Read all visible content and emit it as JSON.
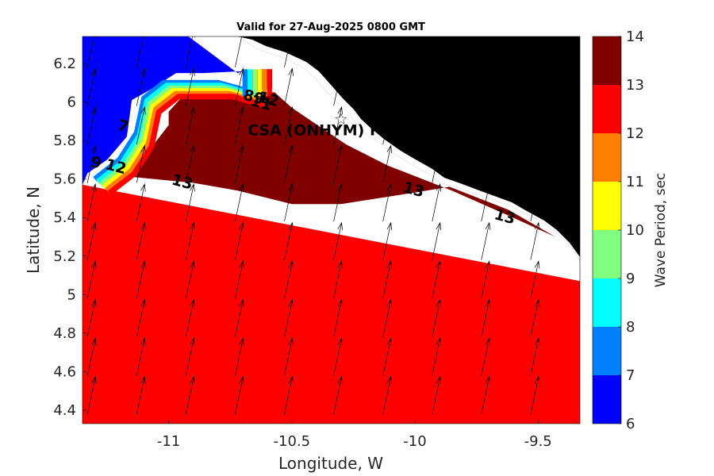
{
  "chart_data": {
    "type": "contour-map",
    "title": "Valid for 27-Aug-2025 0800 GMT",
    "xlabel": "Longitude, W",
    "ylabel": "Latitude, N",
    "xlim": [
      -11.35,
      -9.33
    ],
    "ylim": [
      4.33,
      6.34
    ],
    "x_ticks": [
      -11,
      -10.5,
      -10,
      -9.5
    ],
    "x_tick_labels": [
      "-11",
      "-10.5",
      "-10",
      "-9.5"
    ],
    "y_ticks": [
      4.4,
      4.6,
      4.8,
      5.0,
      5.2,
      5.4,
      5.6,
      5.8,
      6.0,
      6.2
    ],
    "y_tick_labels": [
      "4.4",
      "4.6",
      "4.8",
      "5",
      "5.2",
      "5.4",
      "5.6",
      "5.8",
      "6",
      "6.2"
    ],
    "colorbar": {
      "label": "Wave Period, sec",
      "ticks": [
        "6",
        "7",
        "8",
        "9",
        "10",
        "11",
        "12",
        "13",
        "14"
      ],
      "levels": [
        6,
        7,
        8,
        9,
        10,
        11,
        12,
        13,
        14
      ],
      "colors": [
        "#0000ff",
        "#0080ff",
        "#00ffff",
        "#80ff80",
        "#ffff00",
        "#ff8000",
        "#ff0000",
        "#800000"
      ]
    },
    "regions": [
      {
        "range": [
          12,
          13
        ],
        "color": "#ff0000",
        "boundary": [
          [
            -11.35,
            4.33
          ],
          [
            -9.33,
            4.33
          ],
          [
            -9.33,
            5.07
          ],
          [
            -11.35,
            5.57
          ]
        ]
      },
      {
        "range": [
          13,
          14
        ],
        "color": "#800000",
        "boundary": [
          [
            -11.14,
            5.65
          ],
          [
            -11.14,
            5.61
          ],
          [
            -10.9,
            5.58
          ],
          [
            -10.72,
            5.54
          ],
          [
            -10.5,
            5.47
          ],
          [
            -10.3,
            5.47
          ],
          [
            -10.0,
            5.53
          ],
          [
            -9.86,
            5.56
          ],
          [
            -9.62,
            5.44
          ],
          [
            -9.43,
            5.3
          ],
          [
            -9.62,
            5.41
          ],
          [
            -9.85,
            5.54
          ],
          [
            -10.11,
            5.67
          ],
          [
            -10.28,
            5.78
          ],
          [
            -10.5,
            5.97
          ],
          [
            -10.57,
            6.05
          ],
          [
            -10.7,
            6.05
          ],
          [
            -10.7,
            6.16
          ],
          [
            -10.63,
            6.17
          ],
          [
            -10.58,
            6.17
          ],
          [
            -10.58,
            6.07
          ],
          [
            -10.85,
            6.02
          ],
          [
            -10.95,
            6.02
          ],
          [
            -11.0,
            5.95
          ],
          [
            -11.0,
            5.88
          ]
        ]
      },
      {
        "range": [
          6,
          7
        ],
        "color": "#0000ff",
        "boundary": [
          [
            -11.35,
            5.57
          ],
          [
            -11.35,
            6.34
          ],
          [
            -10.92,
            6.34
          ],
          [
            -10.72,
            6.15
          ],
          [
            -10.7,
            6.16
          ],
          [
            -10.86,
            6.15
          ],
          [
            -10.97,
            6.15
          ],
          [
            -11.08,
            6.06
          ],
          [
            -11.15,
            6.01
          ],
          [
            -11.17,
            5.82
          ],
          [
            -11.25,
            5.7
          ],
          [
            -11.33,
            5.63
          ]
        ]
      }
    ],
    "contour_labels": [
      {
        "text": "13",
        "x": -10.95,
        "y": 5.56
      },
      {
        "text": "13",
        "x": -10.01,
        "y": 5.52
      },
      {
        "text": "13",
        "x": -9.64,
        "y": 5.38
      },
      {
        "text": "12",
        "x": -11.22,
        "y": 5.64
      },
      {
        "text": "9",
        "x": -11.3,
        "y": 5.66
      },
      {
        "text": "7",
        "x": -11.19,
        "y": 5.85
      },
      {
        "text": "89",
        "x": -10.66,
        "y": 6.0
      },
      {
        "text": "11",
        "x": -10.63,
        "y": 5.97
      },
      {
        "text": "12",
        "x": -10.6,
        "y": 5.99
      }
    ],
    "station": {
      "label": "CSA (ONHYM) PPL EBS",
      "x": -10.3,
      "y": 5.91
    },
    "vector_field": {
      "direction_deg_from_north": 12,
      "grid_dx": 0.2,
      "grid_dy": 0.2
    }
  }
}
